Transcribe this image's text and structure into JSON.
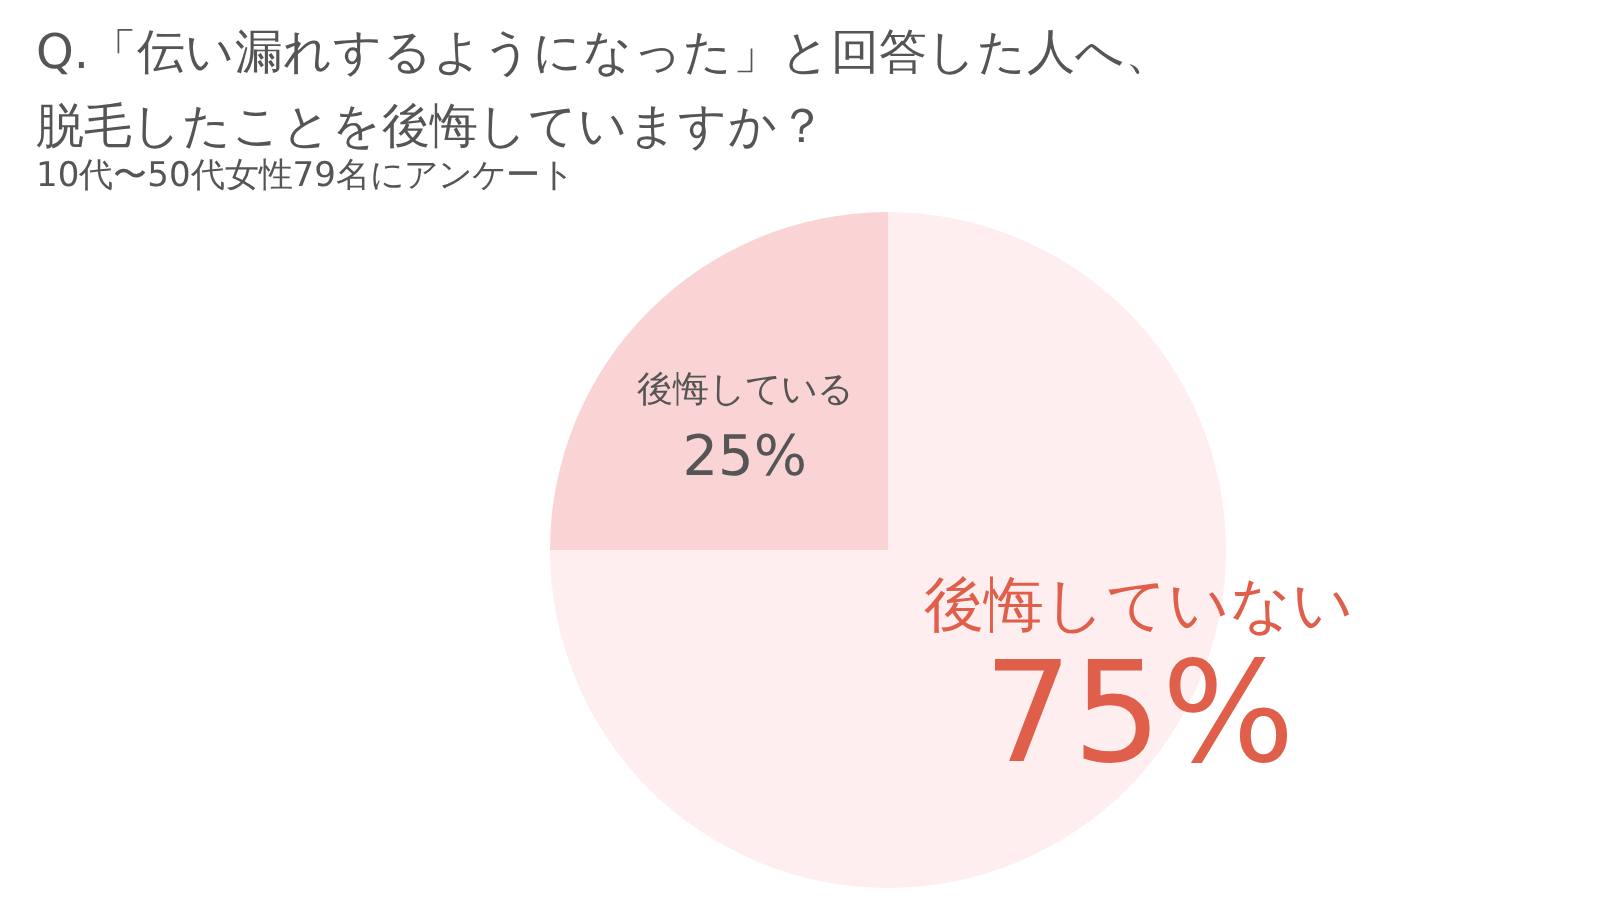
{
  "chart_data": {
    "type": "pie",
    "title": "Q.「伝い漏れするようになった」と回答した人へ、脱毛したことを後悔していますか？",
    "subtitle": "10代〜50代女性79名にアンケート",
    "categories": [
      "後悔していない",
      "後悔している"
    ],
    "values": [
      75,
      25
    ],
    "value_labels": [
      "75%",
      "25%"
    ],
    "colors": [
      "#ffeeef",
      "#fad4d4"
    ]
  }
}
